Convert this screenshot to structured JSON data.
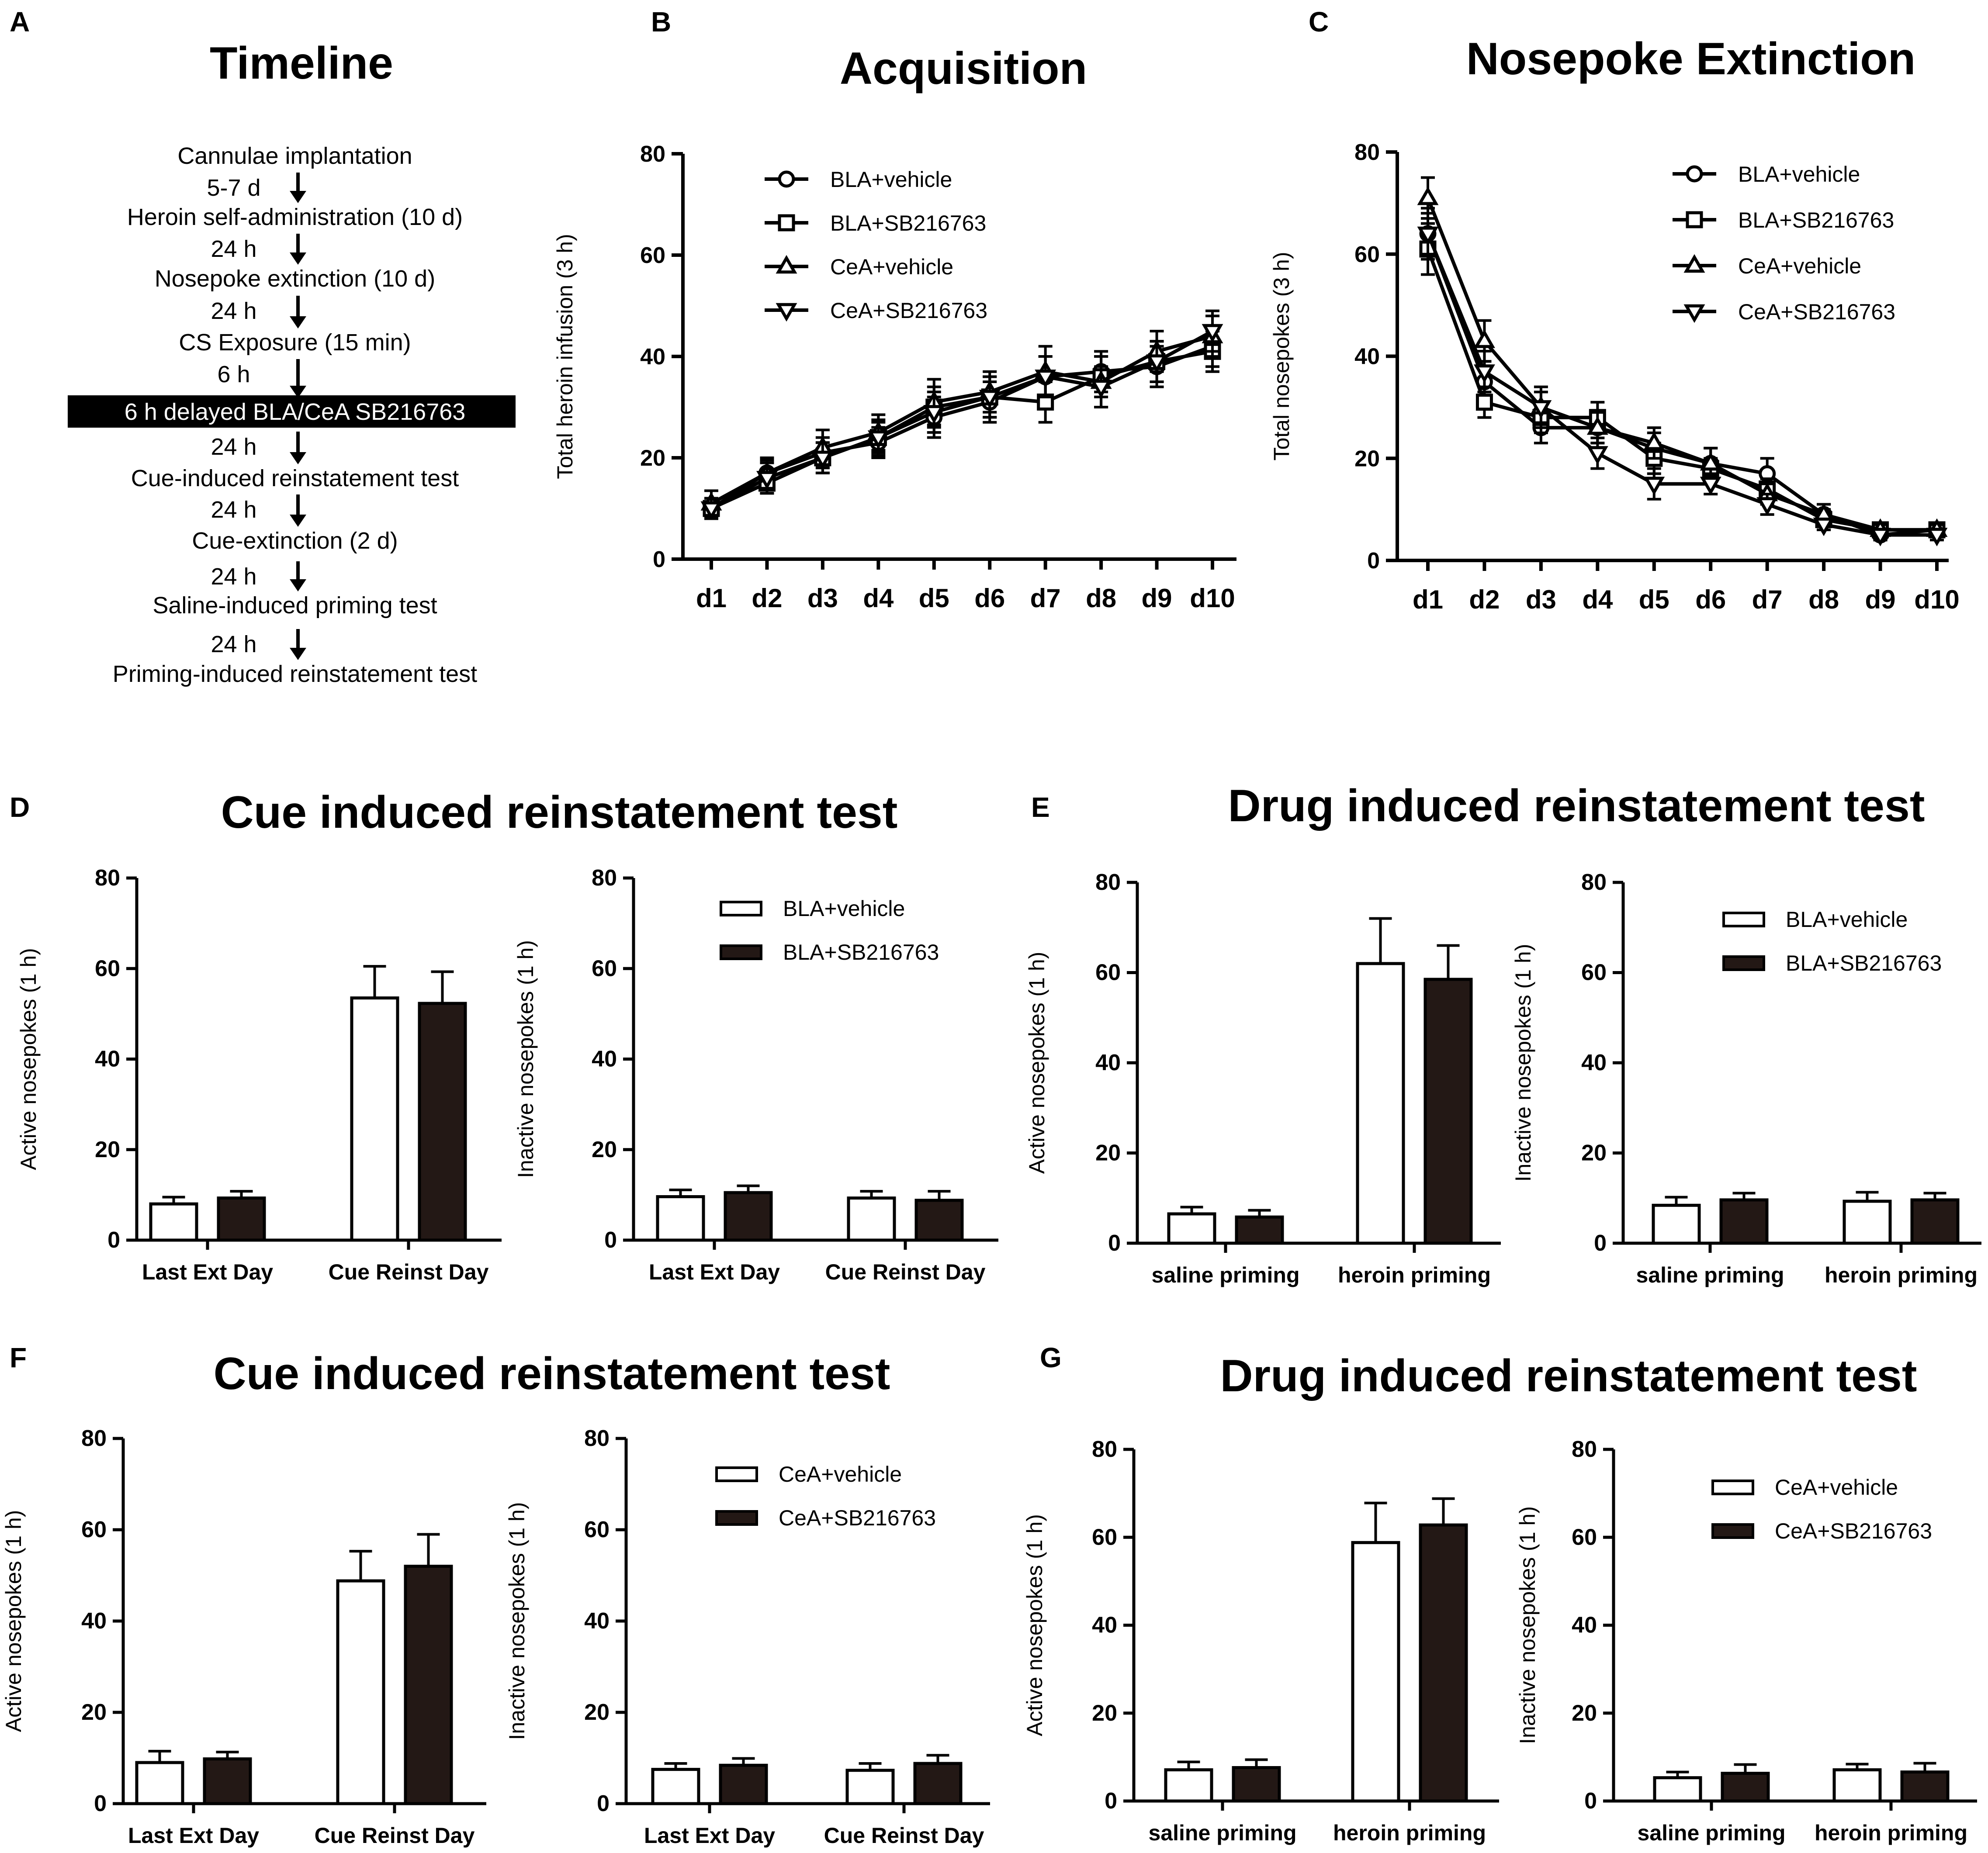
{
  "colors": {
    "ink": "#000000",
    "paper": "#ffffff",
    "bar_dark": "#231815"
  },
  "panels": {
    "A": {
      "letter": "A",
      "title": "Timeline"
    },
    "B": {
      "letter": "B"
    },
    "C": {
      "letter": "C"
    },
    "D": {
      "letter": "D",
      "title": "Cue induced reinstatement test"
    },
    "E": {
      "letter": "E",
      "title": "Drug induced reinstatement test"
    },
    "F": {
      "letter": "F",
      "title": "Cue induced reinstatement test"
    },
    "G": {
      "letter": "G",
      "title": "Drug induced reinstatement test"
    }
  },
  "timeline": {
    "steps": [
      {
        "label": "Cannulae implantation"
      },
      {
        "interval": "5-7 d",
        "label": "Heroin self-administration (10 d)"
      },
      {
        "interval": "24 h",
        "label": "Nosepoke extinction (10 d)"
      },
      {
        "interval": "24 h",
        "label": "CS Exposure (15 min)"
      },
      {
        "interval": "6 h",
        "label": "6 h delayed BLA/CeA SB216763",
        "highlight": true
      },
      {
        "interval": "24 h",
        "label": "Cue-induced reinstatement test"
      },
      {
        "interval": "24 h",
        "label": "Cue-extinction (2 d)"
      },
      {
        "interval": "24 h",
        "label": "Saline-induced priming test"
      },
      {
        "interval": "24 h",
        "label": "Priming-induced reinstatement test"
      }
    ]
  },
  "chart_data": [
    {
      "id": "B",
      "type": "line",
      "title": "Acquisition",
      "xlabel": "",
      "ylabel": "Total heroin infusion (3 h)",
      "categories": [
        "d1",
        "d2",
        "d3",
        "d4",
        "d5",
        "d6",
        "d7",
        "d8",
        "d9",
        "d10"
      ],
      "ylim": [
        0,
        80
      ],
      "yticks": [
        0,
        20,
        40,
        60,
        80
      ],
      "series": [
        {
          "name": "BLA+vehicle",
          "marker": "circle",
          "values": [
            10,
            17,
            21,
            23,
            28,
            31,
            36,
            37,
            38,
            42
          ],
          "errors": [
            2,
            2.5,
            3,
            3,
            4,
            4,
            4,
            4,
            4,
            4
          ]
        },
        {
          "name": "BLA+SB216763",
          "marker": "square",
          "values": [
            10,
            15,
            20,
            24,
            30,
            32,
            31,
            36,
            39,
            41
          ],
          "errors": [
            2,
            2,
            3,
            3,
            4,
            4,
            4,
            4,
            4,
            4
          ]
        },
        {
          "name": "CeA+vehicle",
          "marker": "triangle-up",
          "values": [
            11,
            17,
            22,
            25,
            31,
            33,
            37,
            35,
            41,
            44
          ],
          "errors": [
            2.5,
            3,
            3.5,
            3.5,
            4.5,
            4,
            5,
            5,
            4,
            4
          ]
        },
        {
          "name": "CeA+SB216763",
          "marker": "triangle-down",
          "values": [
            10,
            16,
            20,
            24,
            29,
            32,
            36,
            34,
            39,
            45
          ],
          "errors": [
            2,
            3,
            3,
            3.5,
            4,
            4,
            4,
            4,
            4,
            4
          ]
        }
      ]
    },
    {
      "id": "C",
      "type": "line",
      "title": "Nosepoke Extinction",
      "xlabel": "",
      "ylabel": "Total nosepokes (3 h)",
      "categories": [
        "d1",
        "d2",
        "d3",
        "d4",
        "d5",
        "d6",
        "d7",
        "d8",
        "d9",
        "d10"
      ],
      "ylim": [
        0,
        80
      ],
      "yticks": [
        0,
        20,
        40,
        60,
        80
      ],
      "series": [
        {
          "name": "BLA+vehicle",
          "marker": "circle",
          "values": [
            64,
            35,
            26,
            26,
            22,
            19,
            17,
            9,
            5,
            6
          ],
          "errors": [
            5,
            4,
            3,
            3,
            3,
            3,
            3,
            2,
            1,
            1
          ]
        },
        {
          "name": "BLA+SB216763",
          "marker": "square",
          "values": [
            61,
            31,
            28,
            28,
            20,
            18,
            14,
            8,
            6,
            6
          ],
          "errors": [
            5,
            3,
            3,
            3,
            3,
            2,
            2,
            2,
            1,
            1
          ]
        },
        {
          "name": "CeA+vehicle",
          "marker": "triangle-up",
          "values": [
            71,
            43,
            30,
            26,
            23,
            19,
            13,
            9,
            6,
            6
          ],
          "errors": [
            4,
            4,
            4,
            3,
            3,
            3,
            2,
            2,
            1,
            1
          ]
        },
        {
          "name": "CeA+SB216763",
          "marker": "triangle-down",
          "values": [
            64,
            37,
            30,
            21,
            15,
            15,
            11,
            7,
            5,
            5
          ],
          "errors": [
            4,
            4,
            3,
            3,
            3,
            2,
            2,
            1,
            1,
            1
          ]
        }
      ]
    },
    {
      "id": "D-active",
      "type": "bar",
      "ylabel": "Active nosepokes (1 h)",
      "categories": [
        "Last Ext Day",
        "Cue Reinst Day"
      ],
      "ylim": [
        0,
        80
      ],
      "yticks": [
        0,
        20,
        40,
        60,
        80
      ],
      "series": [
        {
          "name": "BLA+vehicle",
          "fill": "white",
          "values": [
            8,
            53.5
          ],
          "errors": [
            1.5,
            7
          ]
        },
        {
          "name": "BLA+SB216763",
          "fill": "dark",
          "values": [
            9.3,
            52.3
          ],
          "errors": [
            1.5,
            7
          ]
        }
      ]
    },
    {
      "id": "D-inactive",
      "type": "bar",
      "ylabel": "Inactive nosepokes (1 h)",
      "categories": [
        "Last Ext Day",
        "Cue Reinst Day"
      ],
      "ylim": [
        0,
        80
      ],
      "yticks": [
        0,
        20,
        40,
        60,
        80
      ],
      "series": [
        {
          "name": "BLA+vehicle",
          "fill": "white",
          "values": [
            9.6,
            9.3
          ],
          "errors": [
            1.5,
            1.5
          ]
        },
        {
          "name": "BLA+SB216763",
          "fill": "dark",
          "values": [
            10.5,
            8.8
          ],
          "errors": [
            1.5,
            2
          ]
        }
      ],
      "legend": [
        "BLA+vehicle",
        "BLA+SB216763"
      ]
    },
    {
      "id": "E-active",
      "type": "bar",
      "ylabel": "Active nosepokes (1 h)",
      "categories": [
        "saline priming",
        "heroin priming"
      ],
      "ylim": [
        0,
        80
      ],
      "yticks": [
        0,
        20,
        40,
        60,
        80
      ],
      "series": [
        {
          "name": "BLA+vehicle",
          "fill": "white",
          "values": [
            6.5,
            62
          ],
          "errors": [
            1.5,
            10
          ]
        },
        {
          "name": "BLA+SB216763",
          "fill": "dark",
          "values": [
            5.8,
            58.5
          ],
          "errors": [
            1.5,
            7.5
          ]
        }
      ]
    },
    {
      "id": "E-inactive",
      "type": "bar",
      "ylabel": "Inactive nosepokes (1 h)",
      "categories": [
        "saline priming",
        "heroin priming"
      ],
      "ylim": [
        0,
        80
      ],
      "yticks": [
        0,
        20,
        40,
        60,
        80
      ],
      "series": [
        {
          "name": "BLA+vehicle",
          "fill": "white",
          "values": [
            8.4,
            9.3
          ],
          "errors": [
            1.8,
            2
          ]
        },
        {
          "name": "BLA+SB216763",
          "fill": "dark",
          "values": [
            9.6,
            9.6
          ],
          "errors": [
            1.5,
            1.5
          ]
        }
      ],
      "legend": [
        "BLA+vehicle",
        "BLA+SB216763"
      ]
    },
    {
      "id": "F-active",
      "type": "bar",
      "ylabel": "Active nosepokes (1 h)",
      "categories": [
        "Last Ext Day",
        "Cue Reinst Day"
      ],
      "ylim": [
        0,
        80
      ],
      "yticks": [
        0,
        20,
        40,
        60,
        80
      ],
      "series": [
        {
          "name": "CeA+vehicle",
          "fill": "white",
          "values": [
            9,
            48.8
          ],
          "errors": [
            2.5,
            6.5
          ]
        },
        {
          "name": "CeA+SB216763",
          "fill": "dark",
          "values": [
            9.8,
            52
          ],
          "errors": [
            1.5,
            7
          ]
        }
      ]
    },
    {
      "id": "F-inactive",
      "type": "bar",
      "ylabel": "Inactive nosepokes (1 h)",
      "categories": [
        "Last Ext Day",
        "Cue Reinst Day"
      ],
      "ylim": [
        0,
        80
      ],
      "yticks": [
        0,
        20,
        40,
        60,
        80
      ],
      "series": [
        {
          "name": "CeA+vehicle",
          "fill": "white",
          "values": [
            7.5,
            7.3
          ],
          "errors": [
            1.3,
            1.5
          ]
        },
        {
          "name": "CeA+SB216763",
          "fill": "dark",
          "values": [
            8.4,
            8.8
          ],
          "errors": [
            1.5,
            1.8
          ]
        }
      ],
      "legend": [
        "CeA+vehicle",
        "CeA+SB216763"
      ]
    },
    {
      "id": "G-active",
      "type": "bar",
      "ylabel": "Active nosepokes (1 h)",
      "categories": [
        "saline priming",
        "heroin priming"
      ],
      "ylim": [
        0,
        80
      ],
      "yticks": [
        0,
        20,
        40,
        60,
        80
      ],
      "series": [
        {
          "name": "CeA+vehicle",
          "fill": "white",
          "values": [
            7.1,
            58.8
          ],
          "errors": [
            1.8,
            9
          ]
        },
        {
          "name": "CeA+SB216763",
          "fill": "dark",
          "values": [
            7.6,
            62.8
          ],
          "errors": [
            1.8,
            6
          ]
        }
      ]
    },
    {
      "id": "G-inactive",
      "type": "bar",
      "ylabel": "Inactive nosepokes (1 h)",
      "categories": [
        "saline priming",
        "heroin priming"
      ],
      "ylim": [
        0,
        80
      ],
      "yticks": [
        0,
        20,
        40,
        60,
        80
      ],
      "series": [
        {
          "name": "CeA+vehicle",
          "fill": "white",
          "values": [
            5.3,
            7.1
          ],
          "errors": [
            1.3,
            1.3
          ]
        },
        {
          "name": "CeA+SB216763",
          "fill": "dark",
          "values": [
            6.3,
            6.6
          ],
          "errors": [
            2,
            2
          ]
        }
      ],
      "legend": [
        "CeA+vehicle",
        "CeA+SB216763"
      ]
    }
  ]
}
